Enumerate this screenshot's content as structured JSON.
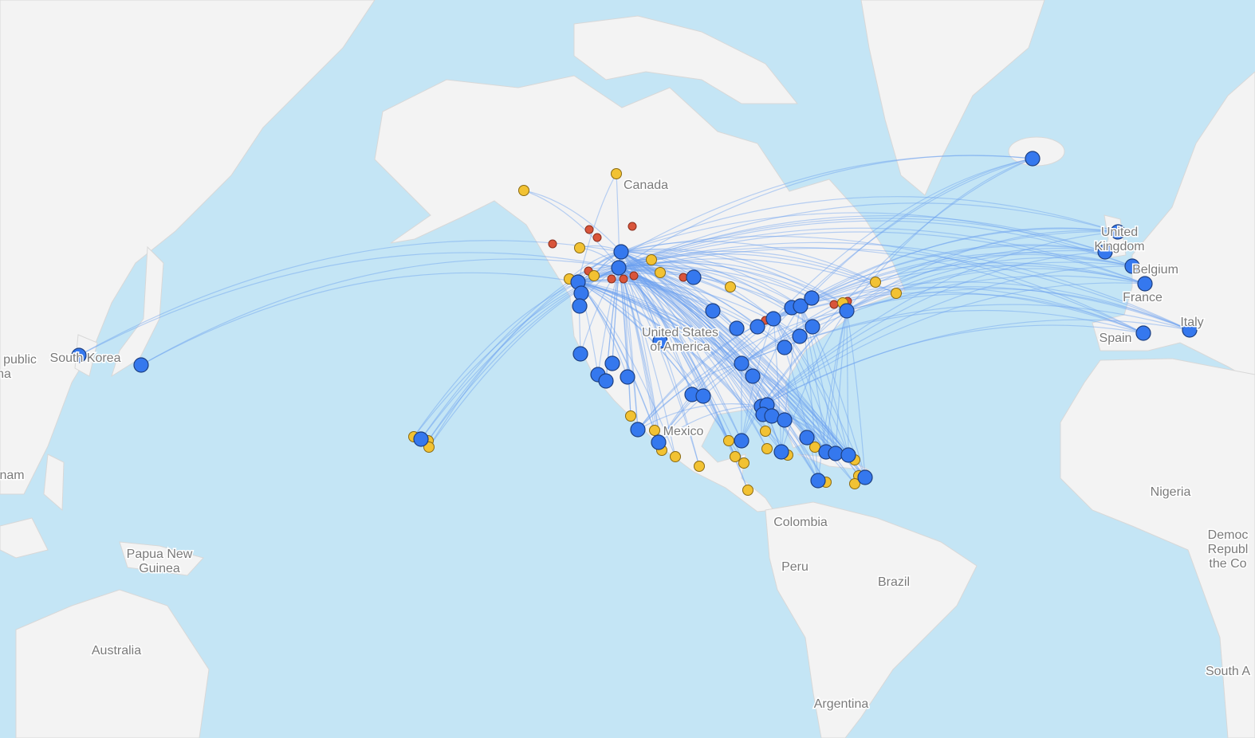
{
  "map": {
    "labels": [
      {
        "lines": [
          "Canada"
        ]
      },
      {
        "lines": [
          "United States",
          "of America"
        ]
      },
      {
        "lines": [
          "Mexico"
        ]
      },
      {
        "lines": [
          "South Korea"
        ]
      },
      {
        "lines": [
          "public"
        ]
      },
      {
        "lines": [
          "na"
        ]
      },
      {
        "lines": [
          "nam"
        ]
      },
      {
        "lines": [
          "Papua New",
          "Guinea"
        ]
      },
      {
        "lines": [
          "Australia"
        ]
      },
      {
        "lines": [
          "Colombia"
        ]
      },
      {
        "lines": [
          "Peru"
        ]
      },
      {
        "lines": [
          "Brazil"
        ]
      },
      {
        "lines": [
          "Argentina"
        ]
      },
      {
        "lines": [
          "Nigeria"
        ]
      },
      {
        "lines": [
          "United",
          "Kingdom"
        ]
      },
      {
        "lines": [
          "Belgium"
        ]
      },
      {
        "lines": [
          "France"
        ]
      },
      {
        "lines": [
          "Spain"
        ]
      },
      {
        "lines": [
          "Italy"
        ]
      },
      {
        "lines": [
          "Democ",
          "Republ",
          "the Co"
        ]
      },
      {
        "lines": [
          "South A"
        ]
      }
    ]
  }
}
